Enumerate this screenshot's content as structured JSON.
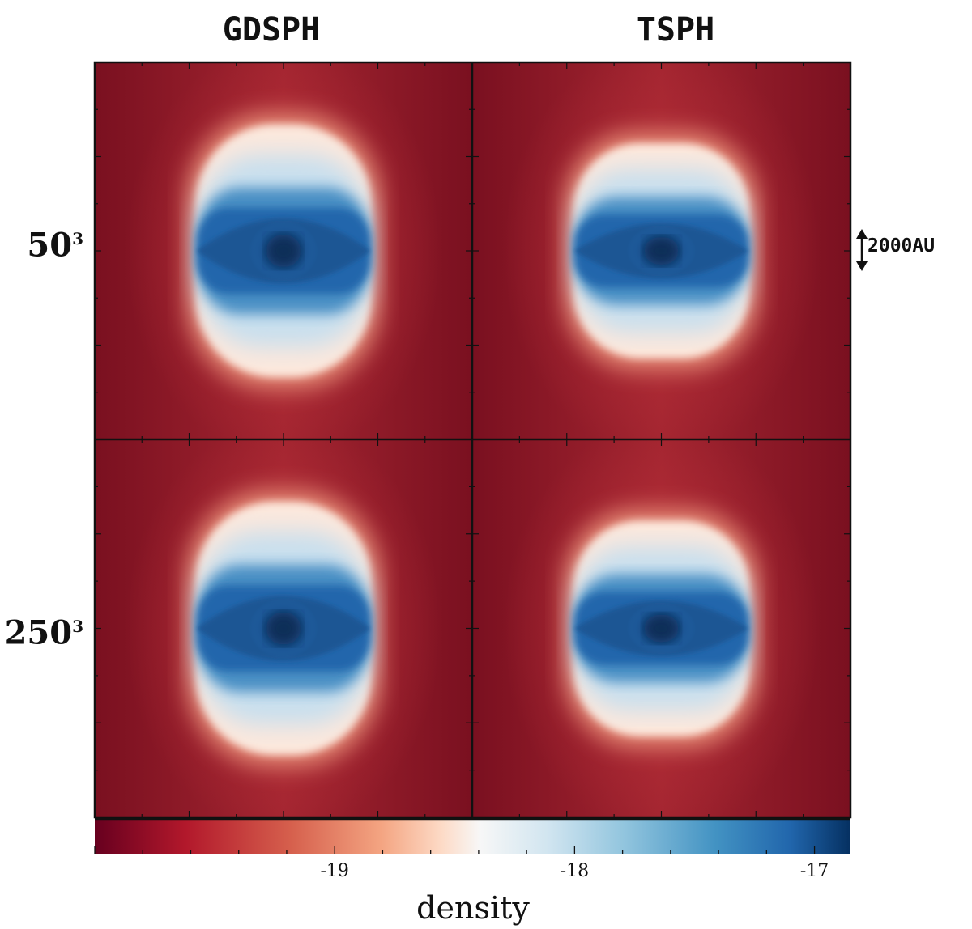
{
  "chart_data": {
    "type": "heatmap",
    "columns": [
      "GDSPH",
      "TSPH"
    ],
    "rows": [
      {
        "base": "50",
        "exponent": "3"
      },
      {
        "base": "250",
        "exponent": "3"
      }
    ],
    "panels": [
      {
        "row": 0,
        "col": 0
      },
      {
        "row": 0,
        "col": 1
      },
      {
        "row": 1,
        "col": 0
      },
      {
        "row": 1,
        "col": 1
      }
    ],
    "scale_bar": {
      "label": "2000AU",
      "length_au": 2000
    },
    "colorbar": {
      "label": "density",
      "ticks": [
        {
          "value": -19,
          "label": "-19"
        },
        {
          "value": -18,
          "label": "-18"
        },
        {
          "value": -17,
          "label": "-17"
        }
      ],
      "range": [
        -20,
        -16.85
      ]
    }
  },
  "colors": {
    "low": "#67001f",
    "high": "#053061",
    "mid": "#f7f7f7"
  }
}
